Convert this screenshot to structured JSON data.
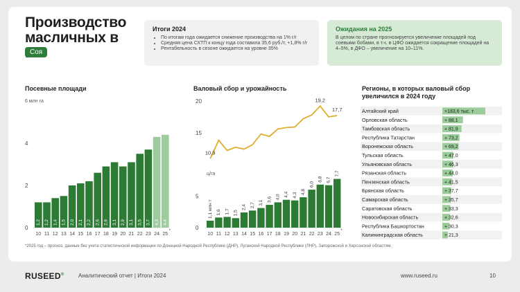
{
  "header": {
    "title": "Производство масличных в РФ",
    "tag": "Соя"
  },
  "summary": {
    "title": "Итоги 2024",
    "items": [
      "По итогам года ожидается снижение производства на 1% г/г",
      "Средняя цена СХТП к концу года составила 35,6 руб./т, +1,8% г/г",
      "Рентабельность в сезоне ожидается на уровне 35%"
    ]
  },
  "expectations": {
    "title": "Ожидания на 2025",
    "text": "В целом по стране прогнозируется увеличение площадей под соевыми бобами, в т.ч. в ЦФО ожидается сокращение площадей на 4–5%, в ДФО – увеличение на 10–11%."
  },
  "footnote": "*2025 год – прогноз, данные без учета статистической информации по Донецкой Народной Республике (ДНР), Луганской Народной Республике (ЛНР), Запорожской и Херсонской областям.",
  "footer": {
    "logo": "RUSEED",
    "report": "Аналитический отчет  |  Итоги 2024",
    "site": "www.ruseed.ru",
    "page": "10"
  },
  "colors": {
    "dark_green": "#2d7a35",
    "light_green": "#9ccc9c",
    "line_gold": "#e0ac2e",
    "accent_tag": "#2f7d3b"
  },
  "chart_data": [
    {
      "type": "bar",
      "title": "Посевные площади",
      "ylabel": "6 млн га",
      "ylim": [
        0,
        6
      ],
      "yticks": [
        "0",
        "2",
        "4"
      ],
      "categories": [
        "10",
        "11",
        "12",
        "13",
        "14",
        "15",
        "16",
        "17",
        "18",
        "19",
        "20",
        "21",
        "22",
        "23",
        "24",
        "25"
      ],
      "values": [
        1.2,
        1.2,
        1.4,
        1.5,
        2.0,
        2.1,
        2.2,
        2.6,
        2.9,
        3.1,
        2.9,
        3.1,
        3.5,
        3.7,
        4.3,
        4.4
      ],
      "labels": [
        "1,2",
        "1,2",
        "1,4",
        "1,5",
        "2,0",
        "2,1",
        "2,2",
        "2,6",
        "2,9",
        "3,1",
        "2,9",
        "3,1",
        "3,5",
        "3,7",
        "4,3",
        "4,4"
      ],
      "last_category_mark": "*"
    },
    {
      "type": "bar+line",
      "title": "Валовый сбор и урожайность",
      "ylim": [
        0,
        20
      ],
      "yticks": [
        "0",
        "5",
        "15",
        "20"
      ],
      "categories": [
        "10",
        "11",
        "12",
        "13",
        "14",
        "15",
        "16",
        "17",
        "18",
        "19",
        "20",
        "21",
        "22",
        "23",
        "24",
        "25"
      ],
      "series": [
        {
          "name": "млн т",
          "kind": "bar",
          "values": [
            1.1,
            1.6,
            1.7,
            1.5,
            2.4,
            2.7,
            3.1,
            3.6,
            4.0,
            4.4,
            4.3,
            4.8,
            6.0,
            6.8,
            6.7,
            7.7
          ],
          "labels": [
            "1,1 млн т",
            "1,6",
            "1,7",
            "1,5",
            "2,4",
            "2,7",
            "3,1",
            "3,6",
            "4,0",
            "4,4",
            "4,3",
            "4,8",
            "6,0",
            "6,8",
            "6,7",
            "7,7"
          ]
        },
        {
          "name": "ц/га",
          "kind": "line",
          "values": [
            10.9,
            13.8,
            12.2,
            12.7,
            12.4,
            13.1,
            14.8,
            14.4,
            15.6,
            15.8,
            15.9,
            17.2,
            17.8,
            19.2,
            17.5,
            17.7
          ],
          "labels": {
            "0": "10,9",
            "13": "19,2",
            "15": "17,7"
          }
        }
      ],
      "line_unit_label": "ц/га",
      "last_category_mark": "*"
    },
    {
      "type": "bar",
      "orientation": "horizontal",
      "title": "Регионы, в которых валовый сбор увеличился в 2024 году",
      "categories": [
        "Алтайский край",
        "Орловская область",
        "Тамбовская область",
        "Республика Татарстан",
        "Воронежская область",
        "Тульская область",
        "Ульяновская область",
        "Рязанская область",
        "Пензенская область",
        "Брянская область",
        "Самарская область",
        "Саратовская область",
        "Новосибирская область",
        "Республика Башкортостан",
        "Калининградская область"
      ],
      "values": [
        183.6,
        88.1,
        81.9,
        73.2,
        69.2,
        47.0,
        46.3,
        44.0,
        41.5,
        37.7,
        35.7,
        33.3,
        32.6,
        30.3,
        21.3
      ],
      "labels": [
        "+183,6 тыс. т",
        "+ 88,1",
        "+ 81,9",
        "+ 73,2",
        "+ 69,2",
        "+ 47,0",
        "+ 46,3",
        "+ 44,0",
        "+ 41,5",
        "+ 37,7",
        "+ 35,7",
        "+ 33,3",
        "+ 32,6",
        "+ 30,3",
        "+ 21,3"
      ]
    }
  ]
}
